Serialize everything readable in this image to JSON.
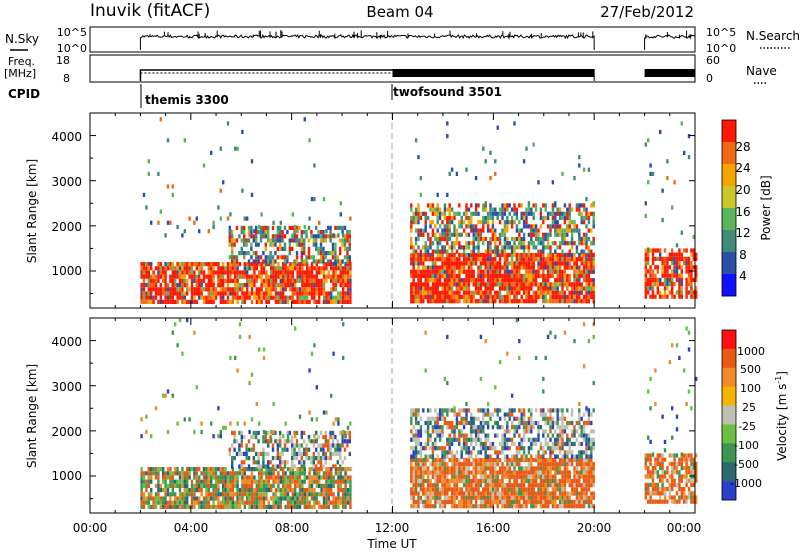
{
  "header": {
    "station": "Inuvik (fitACF)",
    "beam": "Beam 04",
    "date": "27/Feb/2012"
  },
  "nsky_panel": {
    "label": "N.Sky",
    "ticks": [
      "10^5",
      "10^0"
    ],
    "right_label": "N.Search",
    "right_ticks": [
      "10^5",
      "10^0"
    ]
  },
  "freq_panel": {
    "label_line1": "Freq.",
    "label_line2": "[MHz]",
    "ticks": [
      "18",
      "8"
    ],
    "right_label": "Nave",
    "right_ticks": [
      "60",
      "0"
    ]
  },
  "cpid": {
    "label": "CPID",
    "programs": [
      {
        "name": "themis 3300",
        "start_hour": 2.0
      },
      {
        "name": "twofsound 3501",
        "start_hour": 12.0
      }
    ]
  },
  "chart_data": [
    {
      "type": "heatmap",
      "name": "power",
      "ylabel": "Slant Range [km]",
      "ylim": [
        180,
        4500
      ],
      "yticks": [
        "1000",
        "2000",
        "3000",
        "4000"
      ],
      "xlim": [
        0,
        24
      ],
      "data_gaps_hours": [
        [
          0,
          2.0
        ],
        [
          10.3,
          12.7
        ],
        [
          20.0,
          22.0
        ]
      ],
      "colorbar": {
        "label": "Power [dB]",
        "ticks": [
          "4",
          "8",
          "12",
          "16",
          "20",
          "24",
          "28"
        ],
        "colors": [
          "#1010ff",
          "#2b4fa8",
          "#3f8a7a",
          "#5ab55a",
          "#c8c828",
          "#f5a400",
          "#f06a14",
          "#ff1800"
        ]
      }
    },
    {
      "type": "heatmap",
      "name": "velocity",
      "ylabel": "Slant Range [km]",
      "ylim": [
        180,
        4500
      ],
      "yticks": [
        "1000",
        "2000",
        "3000",
        "4000"
      ],
      "xlim": [
        0,
        24
      ],
      "xticks": [
        "00:00",
        "04:00",
        "08:00",
        "12:00",
        "16:00",
        "20:00",
        "00:00"
      ],
      "xlabel": "Time UT",
      "data_gaps_hours": [
        [
          0,
          2.0
        ],
        [
          10.3,
          12.7
        ],
        [
          20.0,
          22.0
        ]
      ],
      "colorbar": {
        "label": "Velocity [m s",
        "label_sup": "-1",
        "label_end": "]",
        "ticks": [
          "1000",
          "500",
          "100",
          "25",
          "-25",
          "-100",
          "-500",
          "-1000"
        ],
        "colors": [
          "#2a40c8",
          "#286a70",
          "#3c9650",
          "#6cc040",
          "#c0c0b0",
          "#f5b400",
          "#f08c28",
          "#e85a14",
          "#ff1010"
        ]
      }
    }
  ]
}
